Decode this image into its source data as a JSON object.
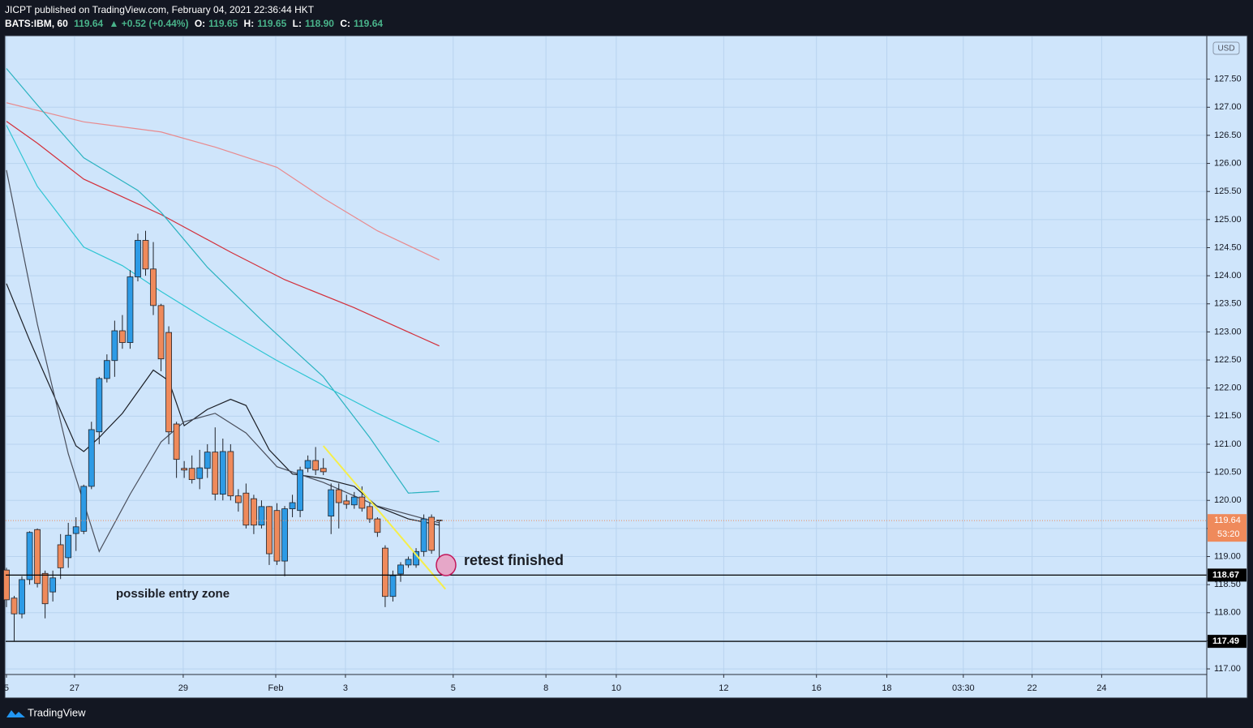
{
  "header": {
    "publisher": "JICPT published on TradingView.com, February 04, 2021 22:36:44 HKT",
    "symbol": "BATS:IBM, 60",
    "last": "119.64",
    "change": "▲ +0.52 (+0.44%)",
    "ohlc": [
      {
        "label": "O:",
        "value": "119.65"
      },
      {
        "label": "H:",
        "value": "119.65"
      },
      {
        "label": "L:",
        "value": "118.90"
      },
      {
        "label": "C:",
        "value": "119.64"
      }
    ]
  },
  "footer": {
    "brand": "TradingView"
  },
  "chart_data": {
    "type": "candlestick",
    "currency": "USD",
    "up_color": "#2d9be6",
    "down_color": "#ef8a5b",
    "wick_color": "#1f232b",
    "x": [
      0,
      1,
      2,
      3,
      4,
      5,
      6,
      7,
      8,
      9,
      10,
      11,
      12,
      13,
      14,
      15,
      16,
      17,
      18,
      19,
      20,
      21,
      22,
      23,
      24,
      25,
      26,
      27,
      28,
      29,
      30,
      31,
      32,
      33,
      34,
      35,
      36,
      37,
      38,
      39,
      40,
      41,
      42,
      43,
      44,
      45,
      46,
      47,
      48,
      49,
      50,
      51,
      52,
      53,
      54,
      55,
      56
    ],
    "open": [
      118.76,
      118.26,
      117.98,
      118.59,
      119.48,
      118.7,
      118.37,
      119.21,
      118.98,
      119.41,
      119.45,
      120.25,
      121.22,
      122.17,
      122.49,
      123.02,
      122.81,
      123.98,
      124.63,
      124.12,
      123.47,
      122.99,
      121.36,
      120.57,
      120.57,
      120.39,
      120.57,
      120.86,
      120.11,
      120.87,
      120.08,
      120.13,
      120.03,
      119.56,
      119.89,
      119.82,
      118.92,
      119.85,
      119.82,
      120.57,
      120.71,
      120.57,
      119.72,
      120.19,
      119.99,
      119.92,
      120.06,
      119.89,
      119.67,
      119.15,
      118.29,
      118.69,
      118.85,
      118.85,
      119.09,
      119.7,
      119.65
    ],
    "high": [
      118.8,
      118.3,
      118.65,
      119.45,
      119.5,
      118.75,
      118.75,
      119.4,
      119.6,
      119.7,
      120.28,
      121.4,
      122.2,
      122.6,
      123.2,
      123.3,
      124.1,
      124.75,
      124.8,
      124.6,
      123.5,
      123.1,
      121.4,
      120.7,
      120.8,
      120.9,
      121.0,
      121.3,
      121.1,
      121.0,
      120.2,
      120.3,
      120.1,
      120.0,
      119.9,
      119.95,
      119.9,
      120.1,
      120.6,
      120.8,
      120.95,
      120.75,
      120.3,
      120.3,
      120.1,
      120.15,
      120.25,
      119.95,
      119.7,
      119.2,
      118.75,
      118.9,
      119.0,
      119.15,
      119.75,
      119.75,
      119.65
    ],
    "low": [
      118.1,
      117.5,
      117.9,
      118.5,
      118.45,
      117.9,
      118.2,
      118.6,
      118.8,
      119.1,
      119.4,
      120.2,
      121.0,
      122.1,
      122.2,
      122.7,
      122.7,
      123.9,
      124.0,
      123.3,
      122.3,
      121.0,
      120.4,
      120.4,
      120.3,
      120.2,
      120.4,
      120.0,
      120.0,
      120.0,
      119.8,
      119.5,
      119.4,
      119.5,
      118.85,
      118.85,
      118.65,
      119.7,
      119.7,
      120.5,
      120.45,
      120.45,
      119.4,
      119.5,
      119.85,
      119.85,
      119.8,
      119.6,
      119.35,
      118.1,
      118.2,
      118.55,
      118.8,
      118.8,
      119.0,
      119.05,
      118.9
    ],
    "close": [
      118.23,
      117.98,
      118.59,
      119.43,
      118.52,
      118.16,
      118.62,
      118.8,
      119.38,
      119.53,
      120.25,
      121.26,
      122.17,
      122.49,
      123.02,
      122.81,
      123.98,
      124.63,
      124.12,
      123.47,
      122.52,
      121.22,
      120.73,
      120.54,
      120.37,
      120.58,
      120.86,
      120.11,
      120.87,
      120.08,
      119.96,
      119.56,
      119.56,
      119.89,
      119.05,
      118.92,
      119.85,
      119.96,
      120.54,
      120.71,
      120.54,
      120.51,
      120.19,
      119.96,
      119.93,
      120.06,
      119.86,
      119.67,
      119.43,
      118.29,
      118.66,
      118.85,
      118.95,
      119.09,
      119.67,
      119.11,
      119.64
    ],
    "lines": [
      {
        "color": "#e88a8e",
        "x": [
          0,
          10,
          20,
          27,
          35,
          41,
          48,
          56
        ],
        "values": [
          127.08,
          126.74,
          126.56,
          126.29,
          125.93,
          125.38,
          124.8,
          124.28
        ]
      },
      {
        "color": "#d32f3a",
        "x": [
          0,
          4,
          10,
          20,
          29,
          36,
          45,
          56
        ],
        "values": [
          126.75,
          126.36,
          125.72,
          125.09,
          124.42,
          123.93,
          123.43,
          122.75
        ]
      },
      {
        "color": "#2bb3c0",
        "x": [
          0,
          4,
          10,
          17,
          20,
          26,
          33,
          41,
          47,
          52,
          56
        ],
        "values": [
          127.69,
          127.04,
          126.1,
          125.52,
          125.13,
          124.15,
          123.21,
          122.2,
          121.12,
          120.13,
          120.16
        ]
      },
      {
        "color": "#2ec5d3",
        "x": [
          0,
          4,
          10,
          15,
          20,
          26,
          35,
          41,
          48,
          56
        ],
        "values": [
          126.68,
          125.59,
          124.51,
          124.18,
          123.72,
          123.21,
          122.49,
          122.05,
          121.55,
          121.04
        ]
      },
      {
        "color": "#1b1e25",
        "x": [
          0,
          3,
          9,
          10,
          12,
          15,
          19,
          21,
          23,
          26,
          29,
          31,
          34,
          37,
          41,
          45,
          48,
          52,
          56
        ],
        "values": [
          123.86,
          122.85,
          120.97,
          120.87,
          121.12,
          121.55,
          122.32,
          122.13,
          121.33,
          121.62,
          121.8,
          121.69,
          120.9,
          120.47,
          120.39,
          120.25,
          119.89,
          119.67,
          119.56
        ]
      },
      {
        "color": "#4a4f5c",
        "x": [
          0,
          4,
          8,
          12,
          16,
          20,
          23,
          27,
          31,
          35,
          41,
          48,
          56
        ],
        "values": [
          125.88,
          123.14,
          120.83,
          119.09,
          120.11,
          121.04,
          121.4,
          121.55,
          121.2,
          120.6,
          120.32,
          119.9,
          119.6
        ]
      }
    ],
    "trendline": {
      "color": "#f5ee4a",
      "x": [
        41,
        56.8
      ],
      "y": [
        120.97,
        118.42
      ]
    },
    "hlines": [
      118.67,
      117.49
    ],
    "last_price": {
      "value": 119.64,
      "countdown": "53:20",
      "color": "#ef8a5b"
    },
    "annotations": [
      "retest finished",
      "possible entry zone"
    ],
    "xlim": [
      -0.1,
      155.3
    ],
    "xticks": [
      {
        "value": 0,
        "label": "5"
      },
      {
        "value": 8.81,
        "label": "27"
      },
      {
        "value": 22.87,
        "label": "29"
      },
      {
        "value": 34.84,
        "label": "Feb"
      },
      {
        "value": 43.86,
        "label": "3"
      },
      {
        "value": 57.8,
        "label": "5"
      },
      {
        "value": 69.8,
        "label": "8"
      },
      {
        "value": 78.9,
        "label": "10"
      },
      {
        "value": 92.8,
        "label": "12"
      },
      {
        "value": 104.8,
        "label": "16"
      },
      {
        "value": 113.9,
        "label": "18"
      },
      {
        "value": 123.8,
        "label": "03:30"
      },
      {
        "value": 132.7,
        "label": "22"
      },
      {
        "value": 141.7,
        "label": "24"
      }
    ],
    "ylim": [
      116.9,
      128.26
    ],
    "yticks": [
      {
        "value": 117,
        "label": "117.00"
      },
      {
        "value": 117.5,
        "label": "117.50"
      },
      {
        "value": 118,
        "label": "118.00"
      },
      {
        "value": 118.5,
        "label": "118.50"
      },
      {
        "value": 119,
        "label": "119.00"
      },
      {
        "value": 119.5,
        "label": "119.50"
      },
      {
        "value": 120,
        "label": "120.00"
      },
      {
        "value": 120.5,
        "label": "120.50"
      },
      {
        "value": 121,
        "label": "121.00"
      },
      {
        "value": 121.5,
        "label": "121.50"
      },
      {
        "value": 122,
        "label": "122.00"
      },
      {
        "value": 122.5,
        "label": "122.50"
      },
      {
        "value": 123,
        "label": "123.00"
      },
      {
        "value": 123.5,
        "label": "123.50"
      },
      {
        "value": 124,
        "label": "124.00"
      },
      {
        "value": 124.5,
        "label": "124.50"
      },
      {
        "value": 125,
        "label": "125.00"
      },
      {
        "value": 125.5,
        "label": "125.50"
      },
      {
        "value": 126,
        "label": "126.00"
      },
      {
        "value": 126.5,
        "label": "126.50"
      },
      {
        "value": 127,
        "label": "127.00"
      },
      {
        "value": 127.5,
        "label": "127.50"
      }
    ],
    "grid": true
  }
}
